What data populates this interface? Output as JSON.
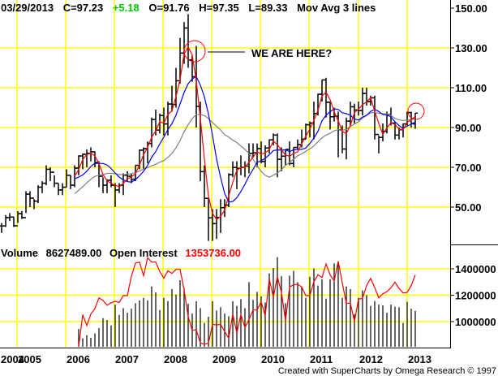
{
  "header": {
    "date": "03/29/2013",
    "close": "C=97.23",
    "change": "+5.18",
    "open": "O=91.76",
    "high": "H=97.35",
    "low": "L=89.33",
    "study": "Mov Avg 3 lines"
  },
  "volume_header": {
    "volume_label": "Volume",
    "volume_value": "8627489.00",
    "oi_label": "Open Interest",
    "oi_value": "1353736.00"
  },
  "annotation": "WE ARE HERE?",
  "footer": "Created with SuperCharts by Omega Research © 1997",
  "colors": {
    "grid": "#ffff00",
    "bars": "#000000",
    "ma_fast": "#ff0000",
    "ma_mid": "#0000ff",
    "ma_slow": "#808080",
    "oi_line": "#ff0000",
    "change": "#00cc00",
    "oi_value": "#ff0000"
  },
  "chart_data": [
    {
      "type": "ohlc-bar",
      "series_fields": [
        "month",
        "high",
        "low",
        "close"
      ],
      "overlays": [
        "moving average (red)",
        "moving average (blue)",
        "moving average (gray)"
      ],
      "y_ticks": [
        "150.00",
        "130.00",
        "110.00",
        "90.00",
        "70.00",
        "50.00"
      ],
      "ylim": [
        40,
        152
      ],
      "x_ticks": [
        "2004",
        "2005",
        "2006",
        "2007",
        "2008",
        "2009",
        "2010",
        "2011",
        "2012",
        "2013"
      ],
      "grid": true,
      "last_open": 91.76,
      "bars": [
        [
          "2004-09",
          42,
          37,
          40.5
        ],
        [
          "2004-10",
          46,
          40,
          44.7
        ],
        [
          "2004-11",
          47,
          43,
          45
        ],
        [
          "2004-12",
          45,
          40,
          40.6
        ],
        [
          "2005-01",
          48,
          42,
          46.7
        ],
        [
          "2005-02",
          48,
          44,
          44.7
        ],
        [
          "2005-03",
          58,
          47,
          56.5
        ],
        [
          "2005-04",
          58,
          50,
          54.5
        ],
        [
          "2005-05",
          54,
          49,
          53
        ],
        [
          "2005-06",
          61,
          52,
          60
        ],
        [
          "2005-07",
          63,
          57,
          62
        ],
        [
          "2005-08",
          71,
          61,
          69
        ],
        [
          "2005-09",
          70,
          63,
          67.5
        ],
        [
          "2005-10",
          66,
          60,
          62
        ],
        [
          "2005-11",
          62,
          56,
          58.6
        ],
        [
          "2005-12",
          62,
          56,
          60
        ],
        [
          "2006-01",
          69,
          60,
          66
        ],
        [
          "2006-02",
          66,
          59,
          61
        ],
        [
          "2006-03",
          71,
          60,
          69.6
        ],
        [
          "2006-04",
          76,
          66,
          75.7
        ],
        [
          "2006-05",
          77,
          69,
          76.5
        ],
        [
          "2006-06",
          79,
          70,
          77
        ],
        [
          "2006-07",
          80,
          73,
          77.8
        ],
        [
          "2006-08",
          78,
          70,
          72.4
        ],
        [
          "2006-09",
          73,
          60,
          65.5
        ],
        [
          "2006-10",
          65,
          57,
          61
        ],
        [
          "2006-11",
          64,
          57,
          63.5
        ],
        [
          "2006-12",
          66,
          60,
          61
        ],
        [
          "2007-01",
          62,
          50,
          58.6
        ],
        [
          "2007-02",
          62,
          57,
          61
        ],
        [
          "2007-03",
          67,
          56,
          66
        ],
        [
          "2007-04",
          68,
          63,
          65.5
        ],
        [
          "2007-05",
          67,
          62,
          64
        ],
        [
          "2007-06",
          71,
          63,
          71
        ],
        [
          "2007-07",
          79,
          69,
          78.6
        ],
        [
          "2007-08",
          80,
          69,
          79.4
        ],
        [
          "2007-09",
          83,
          72,
          82
        ],
        [
          "2007-10",
          95,
          80,
          94
        ],
        [
          "2007-11",
          99,
          86,
          88.7
        ],
        [
          "2007-12",
          97,
          87,
          96
        ],
        [
          "2008-01",
          100,
          86,
          91.8
        ],
        [
          "2008-02",
          103,
          86,
          101.8
        ],
        [
          "2008-03",
          111,
          98,
          101.6
        ],
        [
          "2008-04",
          120,
          100,
          113.5
        ],
        [
          "2008-05",
          135,
          112,
          127.4
        ],
        [
          "2008-06",
          143,
          122,
          140
        ],
        [
          "2008-07",
          147,
          120,
          124
        ],
        [
          "2008-08",
          126,
          113,
          115.5
        ],
        [
          "2008-09",
          131,
          90,
          100.6
        ],
        [
          "2008-10",
          103,
          63,
          67.8
        ],
        [
          "2008-11",
          71,
          50,
          54.4
        ],
        [
          "2008-12",
          54,
          33,
          44.6
        ],
        [
          "2009-01",
          49,
          33,
          41.7
        ],
        [
          "2009-02",
          49,
          34,
          44.8
        ],
        [
          "2009-03",
          54,
          37,
          49.7
        ],
        [
          "2009-04",
          54,
          45,
          51
        ],
        [
          "2009-05",
          67,
          50,
          66.3
        ],
        [
          "2009-06",
          73,
          65,
          69.9
        ],
        [
          "2009-07",
          73,
          59,
          69.5
        ],
        [
          "2009-08",
          76,
          66,
          70
        ],
        [
          "2009-09",
          73,
          65,
          70.6
        ],
        [
          "2009-10",
          82,
          67,
          77
        ],
        [
          "2009-11",
          82,
          75,
          77.3
        ],
        [
          "2009-12",
          82,
          70,
          79.4
        ],
        [
          "2010-01",
          83,
          72,
          72.9
        ],
        [
          "2010-02",
          81,
          70,
          79.7
        ],
        [
          "2010-03",
          84,
          77,
          83.8
        ],
        [
          "2010-04",
          87,
          81,
          86.2
        ],
        [
          "2010-05",
          87,
          65,
          74
        ],
        [
          "2010-06",
          80,
          68,
          75.6
        ],
        [
          "2010-07",
          79,
          71,
          79
        ],
        [
          "2010-08",
          83,
          71,
          71.9
        ],
        [
          "2010-09",
          80,
          70,
          80
        ],
        [
          "2010-10",
          84,
          79,
          81.4
        ],
        [
          "2010-11",
          89,
          80,
          84.1
        ],
        [
          "2010-12",
          92,
          84,
          91.4
        ],
        [
          "2011-01",
          93,
          85,
          92.2
        ],
        [
          "2011-02",
          103,
          84,
          97
        ],
        [
          "2011-03",
          107,
          96,
          106.7
        ],
        [
          "2011-04",
          114,
          103,
          113.9
        ],
        [
          "2011-05",
          115,
          95,
          102.7
        ],
        [
          "2011-06",
          103,
          89,
          95.4
        ],
        [
          "2011-07",
          100,
          93,
          95.7
        ],
        [
          "2011-08",
          98,
          75,
          88.8
        ],
        [
          "2011-09",
          91,
          77,
          79.2
        ],
        [
          "2011-10",
          95,
          74,
          93.2
        ],
        [
          "2011-11",
          103,
          91,
          100.4
        ],
        [
          "2011-12",
          102,
          92,
          98.8
        ],
        [
          "2012-01",
          103,
          96,
          98.5
        ],
        [
          "2012-02",
          110,
          96,
          107.1
        ],
        [
          "2012-03",
          110,
          101,
          103
        ],
        [
          "2012-04",
          106,
          101,
          104.9
        ],
        [
          "2012-05",
          106,
          84,
          86.5
        ],
        [
          "2012-06",
          86,
          77,
          85
        ],
        [
          "2012-07",
          92,
          83,
          88.1
        ],
        [
          "2012-08",
          98,
          87,
          96.5
        ],
        [
          "2012-09",
          100,
          91,
          92.2
        ],
        [
          "2012-10",
          93,
          84,
          86.2
        ],
        [
          "2012-11",
          90,
          84,
          88.9
        ],
        [
          "2012-12",
          92,
          85,
          91.8
        ],
        [
          "2013-01",
          98,
          91,
          97.5
        ],
        [
          "2013-02",
          98,
          90,
          92
        ],
        [
          "2013-03",
          97.35,
          89.33,
          97.23
        ]
      ]
    },
    {
      "type": "bar+line",
      "start_month": "2006-04",
      "y_ticks": [
        "1400000",
        "1200000",
        "1000000"
      ],
      "ylim": [
        800000,
        1500000
      ],
      "grid": true,
      "series": [
        {
          "name": "Volume",
          "type": "bar",
          "values": [
            944000,
            873000,
            897000,
            877000,
            910000,
            951000,
            1026000,
            1012000,
            971000,
            1129000,
            1051000,
            1102000,
            1067000,
            1098000,
            1139000,
            1160000,
            1180000,
            1160000,
            1266000,
            1221000,
            1088000,
            1180000,
            1156000,
            1246000,
            1205000,
            1314000,
            1256000,
            1135000,
            1061000,
            1154000,
            1102000,
            990000,
            1037000,
            1154000,
            1084000,
            1109000,
            1061000,
            1041000,
            1154000,
            1119000,
            1170000,
            1102000,
            1299000,
            1164000,
            1225000,
            1191000,
            1145000,
            1365000,
            1406000,
            1488000,
            1344000,
            1139000,
            1348000,
            1385000,
            1299000,
            1266000,
            1180000,
            1340000,
            1402000,
            1273000,
            1320000,
            1174000,
            1320000,
            1441000,
            1457000,
            1180000,
            1266000,
            1246000,
            1057000,
            1180000,
            1236000,
            1201000,
            1119000,
            1156000,
            1129000,
            1123000,
            1067000,
            1129000,
            1113000,
            1109000,
            990000,
            1150000,
            1098000,
            1082000
          ]
        },
        {
          "name": "Open Interest",
          "type": "line",
          "values": [
            811000,
            1053000,
            969000,
            1057000,
            1098000,
            1180000,
            1160000,
            1123000,
            1143000,
            1154000,
            1145000,
            1197000,
            1197000,
            1344000,
            1443000,
            1451000,
            1348000,
            1484000,
            1451000,
            1451000,
            1379000,
            1330000,
            1385000,
            1365000,
            1396000,
            1396000,
            1242000,
            1037000,
            934000,
            938000,
            838000,
            828000,
            836000,
            979000,
            975000,
            979000,
            924000,
            873000,
            1057000,
            914000,
            1053000,
            955000,
            1016000,
            1088000,
            1088000,
            1150000,
            1043000,
            1324000,
            1186000,
            1340000,
            1221000,
            1006000,
            1262000,
            1279000,
            1283000,
            1262000,
            1197000,
            1197000,
            1303000,
            1355000,
            1334000,
            1437000,
            1355000,
            1307000,
            1457000,
            1293000,
            1139000,
            1139000,
            1000000,
            1170000,
            1176000,
            1273000,
            1328000,
            1258000,
            1180000,
            1211000,
            1227000,
            1256000,
            1299000,
            1252000,
            1217000,
            1221000,
            1273000,
            1353736
          ]
        }
      ]
    }
  ]
}
